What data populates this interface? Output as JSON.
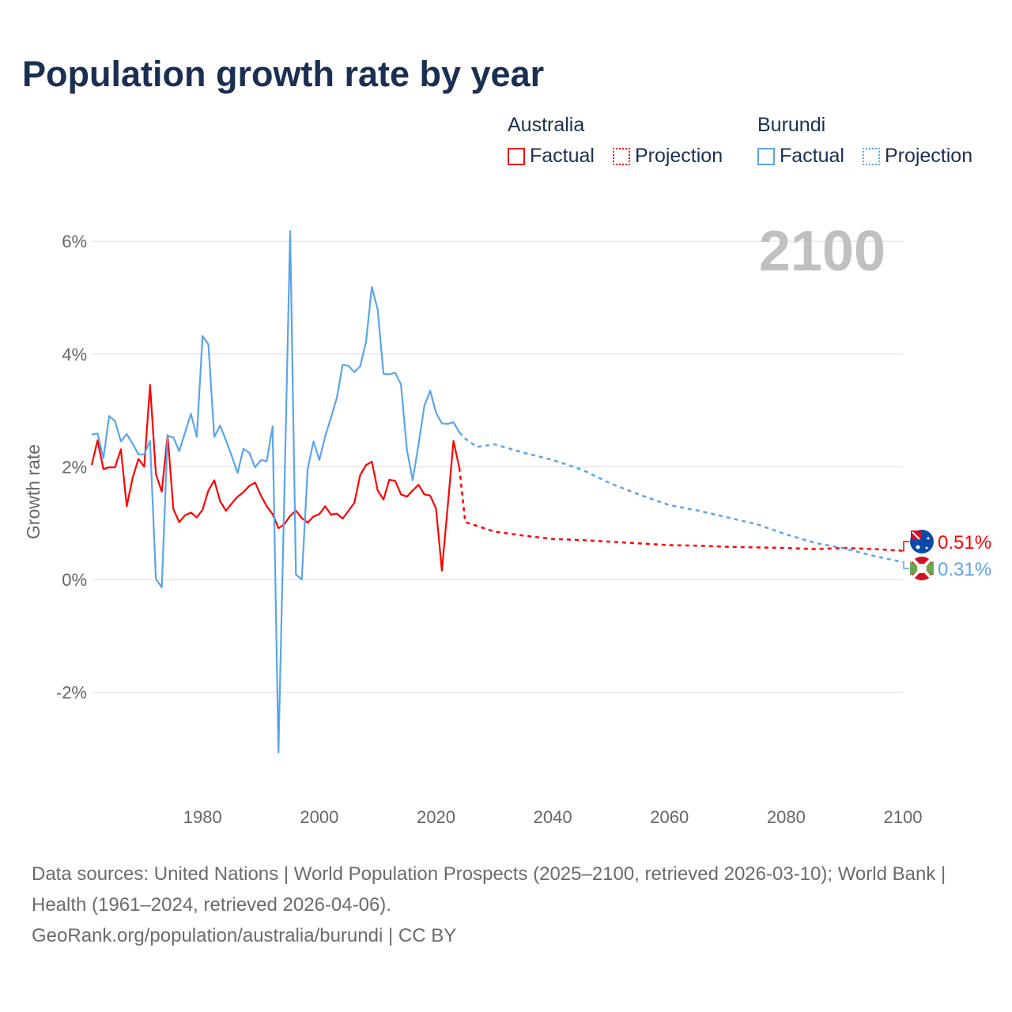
{
  "title": "Population growth rate by year",
  "legend": {
    "groups": [
      {
        "country": "Australia",
        "factual": "Factual",
        "projection": "Projection",
        "color": "#ff0000"
      },
      {
        "country": "Burundi",
        "factual": "Factual",
        "projection": "Projection",
        "color": "#5ba4ea"
      }
    ]
  },
  "source": {
    "line1": "Data sources: United Nations | World Population Prospects (2025–2100, retrieved 2026-03-10); World Bank | Health (1961–2024, retrieved 2026-04-06).",
    "line2": "GeoRank.org/population/australia/burundi | CC BY"
  },
  "chart_data": {
    "type": "line",
    "title": "Population growth rate by year",
    "xlabel": "",
    "ylabel": "Growth rate",
    "xlim": [
      1961,
      2100
    ],
    "ylim": [
      -3.5,
      6.5
    ],
    "yticks": [
      -2,
      0,
      2,
      4,
      6
    ],
    "ytick_labels": [
      "-2%",
      "0%",
      "2%",
      "4%",
      "6%"
    ],
    "xticks": [
      1980,
      2000,
      2020,
      2040,
      2060,
      2080,
      2100
    ],
    "xtick_labels": [
      "1980",
      "2000",
      "2020",
      "2040",
      "2060",
      "2080",
      "2100"
    ],
    "grid": true,
    "year_watermark": "2100",
    "series": [
      {
        "name": "Australia",
        "color": "#ff0000",
        "end_label": "0.51%",
        "flag": "australia-flag",
        "factual": {
          "x_start": 1961,
          "values": [
            2.03,
            2.47,
            1.96,
            1.99,
            1.99,
            2.31,
            1.3,
            1.8,
            2.14,
            2.0,
            3.45,
            1.87,
            1.56,
            2.56,
            1.25,
            1.02,
            1.14,
            1.19,
            1.1,
            1.24,
            1.58,
            1.76,
            1.39,
            1.22,
            1.35,
            1.47,
            1.55,
            1.66,
            1.72,
            1.49,
            1.3,
            1.16,
            0.91,
            0.98,
            1.13,
            1.22,
            1.09,
            1.01,
            1.12,
            1.16,
            1.3,
            1.15,
            1.17,
            1.08,
            1.22,
            1.36,
            1.85,
            2.03,
            2.09,
            1.58,
            1.42,
            1.77,
            1.75,
            1.51,
            1.47,
            1.58,
            1.68,
            1.51,
            1.49,
            1.26,
            0.16,
            1.3,
            2.46,
            1.98
          ]
        },
        "projection": {
          "x": [
            2024,
            2025,
            2030,
            2035,
            2040,
            2045,
            2050,
            2055,
            2060,
            2065,
            2070,
            2075,
            2080,
            2085,
            2090,
            2095,
            2100
          ],
          "values": [
            1.98,
            1.02,
            0.85,
            0.78,
            0.72,
            0.7,
            0.67,
            0.64,
            0.61,
            0.6,
            0.58,
            0.57,
            0.56,
            0.54,
            0.56,
            0.54,
            0.51
          ]
        }
      },
      {
        "name": "Burundi",
        "color": "#5ba4ea",
        "end_label": "0.31%",
        "flag": "burundi-flag",
        "factual": {
          "x_start": 1961,
          "values": [
            2.57,
            2.59,
            2.15,
            2.9,
            2.81,
            2.45,
            2.58,
            2.41,
            2.22,
            2.22,
            2.46,
            0.01,
            -0.14,
            2.55,
            2.52,
            2.28,
            2.61,
            2.94,
            2.53,
            4.32,
            4.17,
            2.53,
            2.73,
            2.47,
            2.19,
            1.89,
            2.32,
            2.25,
            1.99,
            2.12,
            2.1,
            2.72,
            -3.07,
            1.5,
            6.18,
            0.09,
            0.0,
            1.96,
            2.45,
            2.12,
            2.54,
            2.87,
            3.22,
            3.81,
            3.79,
            3.68,
            3.78,
            4.21,
            5.19,
            4.79,
            3.65,
            3.64,
            3.67,
            3.46,
            2.31,
            1.76,
            2.4,
            3.08,
            3.35,
            2.96,
            2.77,
            2.76,
            2.79,
            2.61
          ]
        },
        "projection": {
          "x": [
            2024,
            2025,
            2027,
            2030,
            2035,
            2040,
            2045,
            2050,
            2055,
            2060,
            2065,
            2070,
            2075,
            2080,
            2085,
            2090,
            2095,
            2100
          ],
          "values": [
            2.61,
            2.5,
            2.35,
            2.4,
            2.25,
            2.12,
            1.95,
            1.7,
            1.5,
            1.32,
            1.22,
            1.1,
            0.98,
            0.8,
            0.65,
            0.55,
            0.42,
            0.31
          ]
        }
      }
    ]
  }
}
